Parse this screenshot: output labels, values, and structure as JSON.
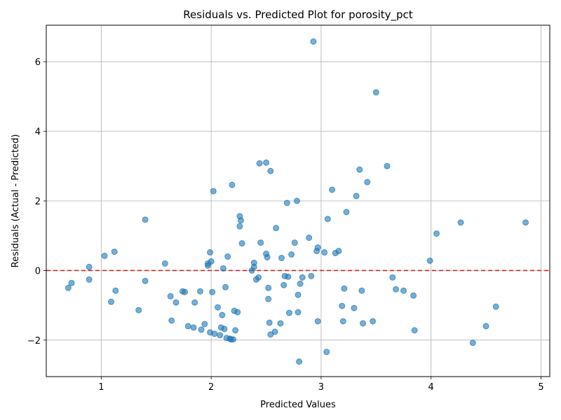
{
  "chart_data": {
    "type": "scatter",
    "title": "Residuals vs. Predicted Plot for porosity_pct",
    "xlabel": "Predicted Values",
    "ylabel": "Residuals (Actual - Predicted)",
    "xlim": [
      0.5,
      5.08
    ],
    "ylim": [
      -3.05,
      7.05
    ],
    "xticks": [
      1,
      2,
      3,
      4,
      5
    ],
    "yticks": [
      -2,
      0,
      2,
      4,
      6
    ],
    "grid": true,
    "point_color": "#1f77b4",
    "reference_line": {
      "y": 0,
      "color": "#d62728",
      "style": "dashed"
    },
    "points": [
      [
        0.7,
        -0.5
      ],
      [
        0.73,
        -0.36
      ],
      [
        0.89,
        0.1
      ],
      [
        0.89,
        -0.26
      ],
      [
        1.03,
        0.42
      ],
      [
        1.09,
        -0.9
      ],
      [
        1.12,
        0.54
      ],
      [
        1.13,
        -0.58
      ],
      [
        1.34,
        -1.14
      ],
      [
        1.4,
        1.46
      ],
      [
        1.4,
        -0.3
      ],
      [
        1.58,
        0.2
      ],
      [
        1.63,
        -0.74
      ],
      [
        1.64,
        -1.44
      ],
      [
        1.68,
        -0.92
      ],
      [
        1.74,
        -0.6
      ],
      [
        1.76,
        -0.62
      ],
      [
        1.79,
        -1.6
      ],
      [
        1.84,
        -1.64
      ],
      [
        1.85,
        -0.92
      ],
      [
        1.9,
        -0.6
      ],
      [
        1.91,
        -1.7
      ],
      [
        1.94,
        -1.54
      ],
      [
        1.97,
        0.14
      ],
      [
        1.97,
        0.2
      ],
      [
        1.99,
        -1.78
      ],
      [
        1.99,
        0.52
      ],
      [
        2.0,
        0.26
      ],
      [
        2.01,
        -0.62
      ],
      [
        2.02,
        2.28
      ],
      [
        2.03,
        -1.82
      ],
      [
        2.06,
        -1.06
      ],
      [
        2.08,
        -1.86
      ],
      [
        2.09,
        -1.64
      ],
      [
        2.1,
        -1.28
      ],
      [
        2.11,
        0.06
      ],
      [
        2.12,
        -1.68
      ],
      [
        2.13,
        -0.48
      ],
      [
        2.14,
        -1.94
      ],
      [
        2.15,
        0.4
      ],
      [
        2.17,
        -1.96
      ],
      [
        2.18,
        -1.98
      ],
      [
        2.19,
        2.46
      ],
      [
        2.2,
        -1.98
      ],
      [
        2.21,
        -1.16
      ],
      [
        2.22,
        -1.72
      ],
      [
        2.24,
        -1.2
      ],
      [
        2.26,
        1.56
      ],
      [
        2.26,
        1.27
      ],
      [
        2.27,
        1.44
      ],
      [
        2.28,
        0.78
      ],
      [
        2.37,
        0.0
      ],
      [
        2.39,
        0.1
      ],
      [
        2.39,
        0.22
      ],
      [
        2.41,
        -0.26
      ],
      [
        2.43,
        -0.2
      ],
      [
        2.44,
        3.08
      ],
      [
        2.45,
        0.8
      ],
      [
        2.5,
        3.1
      ],
      [
        2.5,
        0.48
      ],
      [
        2.51,
        0.38
      ],
      [
        2.52,
        -0.5
      ],
      [
        2.52,
        -0.82
      ],
      [
        2.53,
        -1.5
      ],
      [
        2.54,
        2.86
      ],
      [
        2.54,
        -1.84
      ],
      [
        2.58,
        -1.76
      ],
      [
        2.59,
        1.22
      ],
      [
        2.63,
        -1.52
      ],
      [
        2.64,
        0.36
      ],
      [
        2.66,
        -0.42
      ],
      [
        2.67,
        -0.16
      ],
      [
        2.69,
        1.94
      ],
      [
        2.7,
        -0.18
      ],
      [
        2.71,
        -1.22
      ],
      [
        2.73,
        0.46
      ],
      [
        2.76,
        0.8
      ],
      [
        2.78,
        2.0
      ],
      [
        2.79,
        -0.7
      ],
      [
        2.79,
        -1.2
      ],
      [
        2.8,
        -2.62
      ],
      [
        2.81,
        -0.38
      ],
      [
        2.83,
        -0.2
      ],
      [
        2.89,
        0.94
      ],
      [
        2.91,
        -0.16
      ],
      [
        2.93,
        6.58
      ],
      [
        2.96,
        0.56
      ],
      [
        2.97,
        0.66
      ],
      [
        2.97,
        -1.46
      ],
      [
        3.03,
        0.52
      ],
      [
        3.05,
        -2.34
      ],
      [
        3.06,
        1.48
      ],
      [
        3.1,
        2.32
      ],
      [
        3.13,
        0.5
      ],
      [
        3.16,
        0.56
      ],
      [
        3.19,
        -1.02
      ],
      [
        3.2,
        -1.46
      ],
      [
        3.21,
        -0.52
      ],
      [
        3.23,
        1.68
      ],
      [
        3.3,
        -1.08
      ],
      [
        3.32,
        2.14
      ],
      [
        3.35,
        2.9
      ],
      [
        3.37,
        -0.58
      ],
      [
        3.38,
        -1.52
      ],
      [
        3.42,
        2.54
      ],
      [
        3.47,
        -1.46
      ],
      [
        3.5,
        5.12
      ],
      [
        3.6,
        3.0
      ],
      [
        3.65,
        -0.2
      ],
      [
        3.68,
        -0.54
      ],
      [
        3.75,
        -0.58
      ],
      [
        3.84,
        -0.72
      ],
      [
        3.85,
        -1.72
      ],
      [
        3.99,
        0.28
      ],
      [
        4.05,
        1.06
      ],
      [
        4.27,
        1.38
      ],
      [
        4.38,
        -2.08
      ],
      [
        4.5,
        -1.6
      ],
      [
        4.59,
        -1.04
      ],
      [
        4.86,
        1.38
      ]
    ]
  }
}
